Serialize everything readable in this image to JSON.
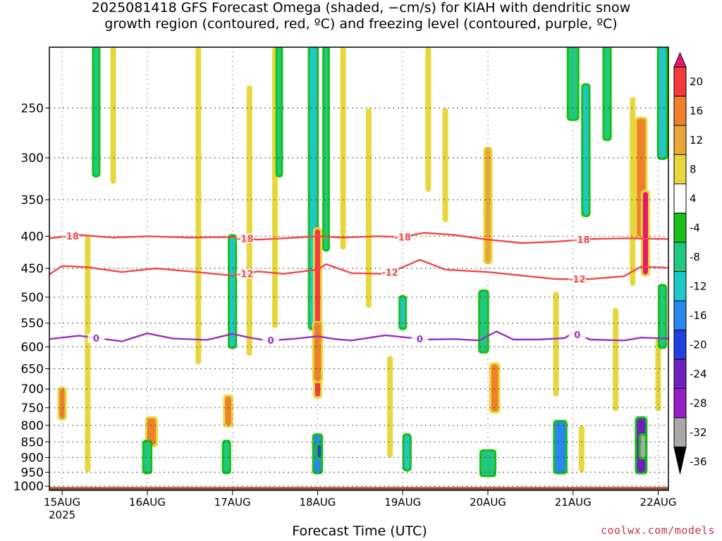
{
  "chart_data": {
    "type": "heatmap",
    "title_lines": [
      "2025081418 GFS Forecast Omega (shaded, −cm/s) for KIAH with dendritic snow",
      "growth region (contoured, red, ºC) and freezing level (contoured, purple, ºC)"
    ],
    "xlabel": "Forecast Time (UTC)",
    "ylabel": "",
    "x_ticks": [
      "15AUG",
      "16AUG",
      "17AUG",
      "18AUG",
      "19AUG",
      "20AUG",
      "21AUG",
      "22AUG"
    ],
    "x_tick_year": "2025",
    "x_range_days": [
      14.85,
      22.12
    ],
    "y_ticks": [
      250,
      300,
      350,
      400,
      450,
      500,
      550,
      600,
      650,
      700,
      750,
      800,
      850,
      900,
      950,
      1000
    ],
    "y_range_hpa": [
      200,
      1015
    ],
    "y_scale": "log (pressure, inverted)",
    "grid": "dotted",
    "colorbar": {
      "labels": [
        "20",
        "16",
        "12",
        "8",
        "4",
        "-4",
        "-8",
        "-12",
        "-16",
        "-20",
        "-24",
        "-28",
        "-32",
        "-36"
      ],
      "colors": [
        "#e8186e",
        "#f43a3a",
        "#f0802a",
        "#eaa838",
        "#e6d83c",
        "#ffffff",
        "#18c018",
        "#20c880",
        "#20c8c8",
        "#2888f0",
        "#2040e0",
        "#7020c0",
        "#9820c8",
        "#a8a8a8",
        "#000000"
      ]
    },
    "contours": [
      {
        "label": "-18",
        "color": "#f04848",
        "labels_at_days": [
          15.1,
          17.15,
          19.0,
          21.1
        ],
        "x": [
          14.85,
          15.2,
          15.6,
          16.0,
          16.5,
          17.0,
          17.3,
          17.6,
          18.0,
          18.3,
          18.7,
          19.0,
          19.25,
          19.6,
          20.0,
          20.4,
          20.8,
          21.2,
          21.6,
          22.12
        ],
        "hpa": [
          403,
          398,
          402,
          400,
          402,
          401,
          405,
          403,
          400,
          402,
          400,
          401,
          395,
          398,
          405,
          410,
          408,
          404,
          403,
          404
        ]
      },
      {
        "label": "-12",
        "color": "#f04848",
        "labels_at_days": [
          17.15,
          18.85,
          21.05
        ],
        "x": [
          14.85,
          15.0,
          15.3,
          15.7,
          16.1,
          16.5,
          17.0,
          17.3,
          17.6,
          18.0,
          18.1,
          18.4,
          18.8,
          19.0,
          19.2,
          19.5,
          20.0,
          20.4,
          20.8,
          21.2,
          21.6,
          21.8,
          22.12
        ],
        "hpa": [
          460,
          446,
          448,
          456,
          450,
          455,
          462,
          455,
          459,
          452,
          443,
          458,
          459,
          448,
          436,
          452,
          456,
          462,
          468,
          468,
          463,
          447,
          449
        ]
      },
      {
        "label": "0",
        "color": "#9a30c0",
        "labels_at_days": [
          15.4,
          17.45,
          19.2,
          21.05
        ],
        "x": [
          14.85,
          15.2,
          15.7,
          16.0,
          16.3,
          16.7,
          17.0,
          17.2,
          17.4,
          17.7,
          18.0,
          18.2,
          18.4,
          18.8,
          19.0,
          19.3,
          19.6,
          19.9,
          20.1,
          20.3,
          20.6,
          20.9,
          21.0,
          21.2,
          21.6,
          21.8,
          22.12
        ],
        "hpa": [
          583,
          576,
          588,
          571,
          582,
          585,
          572,
          580,
          586,
          583,
          577,
          583,
          586,
          575,
          579,
          584,
          583,
          586,
          567,
          584,
          584,
          581,
          570,
          584,
          586,
          580,
          582
        ]
      }
    ],
    "shaded_cells": [
      {
        "d": 15.0,
        "w": 0.06,
        "p": [
          700,
          780
        ],
        "v": 12
      },
      {
        "d": 15.4,
        "w": 0.05,
        "p": [
          200,
          320
        ],
        "v": -8
      },
      {
        "d": 16.05,
        "w": 0.1,
        "p": [
          780,
          860
        ],
        "v": 12
      },
      {
        "d": 16.0,
        "w": 0.07,
        "p": [
          850,
          950
        ],
        "v": -8
      },
      {
        "d": 17.0,
        "w": 0.06,
        "p": [
          400,
          600
        ],
        "v": -12
      },
      {
        "d": 16.95,
        "w": 0.07,
        "p": [
          720,
          800
        ],
        "v": 12
      },
      {
        "d": 16.93,
        "w": 0.06,
        "p": [
          850,
          950
        ],
        "v": -8
      },
      {
        "d": 17.55,
        "w": 0.04,
        "p": [
          200,
          320
        ],
        "v": -8
      },
      {
        "d": 17.95,
        "w": 0.08,
        "p": [
          200,
          560
        ],
        "v": -12
      },
      {
        "d": 18.0,
        "w": 0.06,
        "p": [
          390,
          720
        ],
        "v": 16
      },
      {
        "d": 18.0,
        "w": 0.08,
        "p": [
          550,
          680
        ],
        "v": 12
      },
      {
        "d": 18.0,
        "w": 0.08,
        "p": [
          830,
          950
        ],
        "v": -16
      },
      {
        "d": 18.02,
        "w": 0.04,
        "p": [
          860,
          900
        ],
        "v": -20
      },
      {
        "d": 18.1,
        "w": 0.04,
        "p": [
          200,
          420
        ],
        "v": -8
      },
      {
        "d": 19.0,
        "w": 0.05,
        "p": [
          500,
          560
        ],
        "v": -12
      },
      {
        "d": 19.05,
        "w": 0.06,
        "p": [
          830,
          940
        ],
        "v": -12
      },
      {
        "d": 20.0,
        "w": 0.06,
        "p": [
          290,
          440
        ],
        "v": 8
      },
      {
        "d": 19.95,
        "w": 0.08,
        "p": [
          490,
          610
        ],
        "v": -8
      },
      {
        "d": 20.08,
        "w": 0.08,
        "p": [
          640,
          760
        ],
        "v": 12
      },
      {
        "d": 20.0,
        "w": 0.15,
        "p": [
          880,
          960
        ],
        "v": -8
      },
      {
        "d": 20.85,
        "w": 0.12,
        "p": [
          790,
          950
        ],
        "v": -16
      },
      {
        "d": 21.0,
        "w": 0.1,
        "p": [
          200,
          260
        ],
        "v": -8
      },
      {
        "d": 21.15,
        "w": 0.06,
        "p": [
          230,
          370
        ],
        "v": -12
      },
      {
        "d": 21.4,
        "w": 0.06,
        "p": [
          200,
          280
        ],
        "v": -8
      },
      {
        "d": 21.8,
        "w": 0.1,
        "p": [
          260,
          400
        ],
        "v": 12
      },
      {
        "d": 21.85,
        "w": 0.06,
        "p": [
          340,
          460
        ],
        "v": 20
      },
      {
        "d": 21.8,
        "w": 0.1,
        "p": [
          780,
          950
        ],
        "v": -24
      },
      {
        "d": 21.82,
        "w": 0.05,
        "p": [
          830,
          900
        ],
        "v": -32
      },
      {
        "d": 22.05,
        "w": 0.08,
        "p": [
          200,
          300
        ],
        "v": -12
      },
      {
        "d": 22.05,
        "w": 0.06,
        "p": [
          480,
          600
        ],
        "v": -8
      }
    ],
    "yellow_streaks": [
      {
        "d": 15.3,
        "p": [
          400,
          950
        ]
      },
      {
        "d": 15.6,
        "p": [
          200,
          330
        ]
      },
      {
        "d": 16.6,
        "p": [
          200,
          640
        ]
      },
      {
        "d": 17.2,
        "p": [
          230,
          620
        ]
      },
      {
        "d": 17.5,
        "p": [
          200,
          560
        ]
      },
      {
        "d": 18.3,
        "p": [
          200,
          420
        ]
      },
      {
        "d": 18.6,
        "p": [
          250,
          520
        ]
      },
      {
        "d": 18.85,
        "p": [
          620,
          900
        ]
      },
      {
        "d": 19.3,
        "p": [
          200,
          340
        ]
      },
      {
        "d": 19.5,
        "p": [
          250,
          380
        ]
      },
      {
        "d": 20.8,
        "p": [
          490,
          720
        ]
      },
      {
        "d": 21.1,
        "p": [
          800,
          950
        ]
      },
      {
        "d": 21.5,
        "p": [
          520,
          760
        ]
      },
      {
        "d": 21.7,
        "p": [
          240,
          480
        ]
      },
      {
        "d": 22.0,
        "p": [
          580,
          760
        ]
      }
    ],
    "ground_color": "#a0522d"
  },
  "branding": {
    "watermark": "coolwx.com/models"
  }
}
